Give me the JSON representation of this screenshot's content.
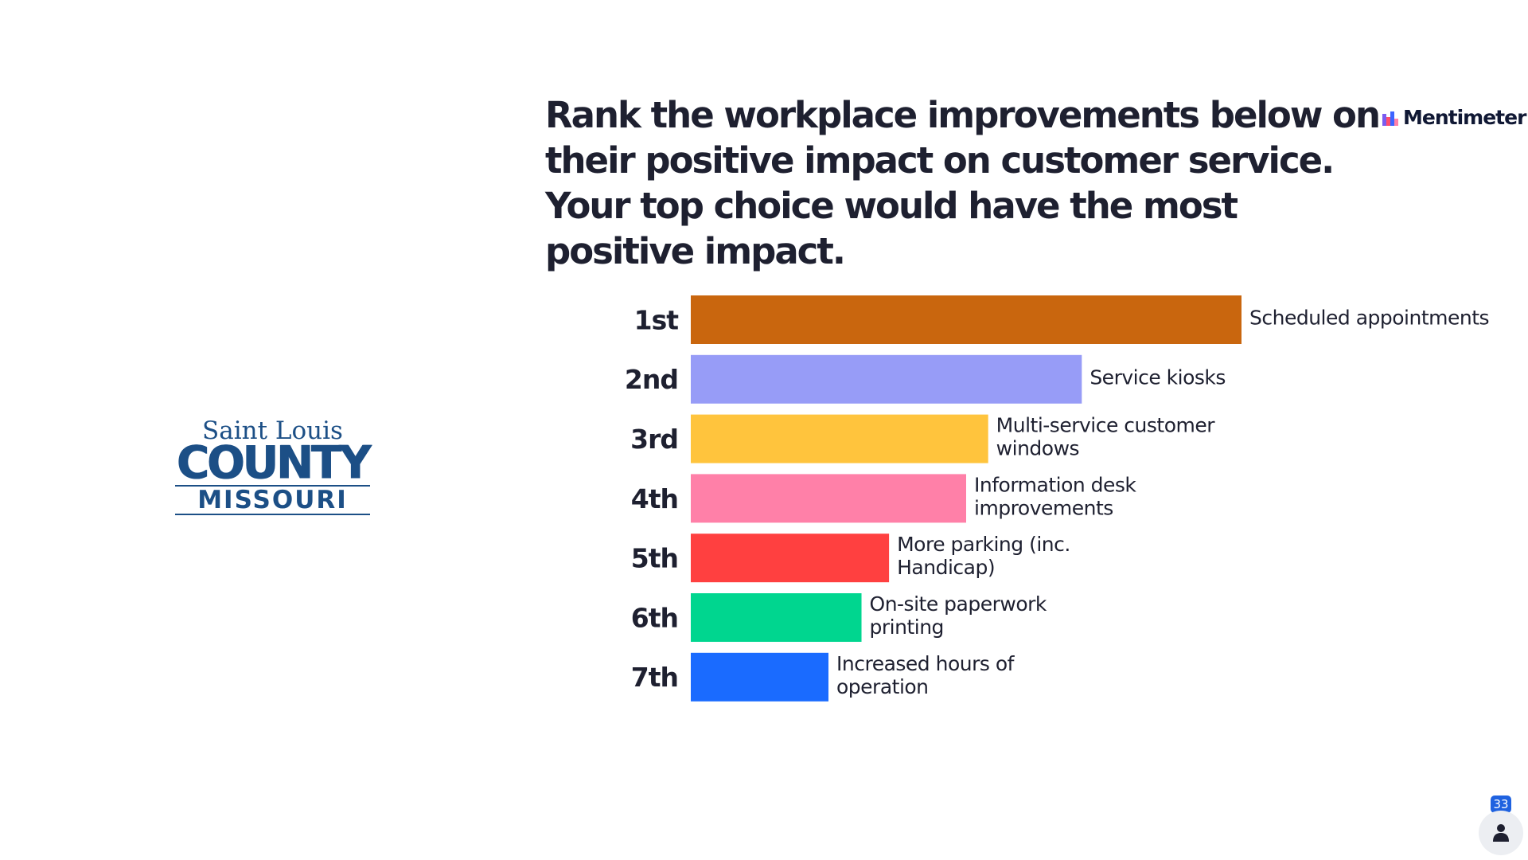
{
  "org_logo": {
    "line1": "Saint Louis",
    "line2": "COUNTY",
    "line3": "MISSOURI",
    "color": "#1c4f86"
  },
  "brand": {
    "name": "Mentimeter",
    "icon": "mentimeter-logo-icon"
  },
  "slide": {
    "question": "Rank the workplace improvements below on their positive impact on customer service. Your top choice would have the most positive impact."
  },
  "participants": {
    "count": "33",
    "icon": "person-icon",
    "badge_color": "#1f62e0"
  },
  "chart_data": {
    "type": "bar",
    "orientation": "horizontal",
    "categories": [
      "1st",
      "2nd",
      "3rd",
      "4th",
      "5th",
      "6th",
      "7th"
    ],
    "items": [
      {
        "rank": "1st",
        "label": "Scheduled appointments",
        "value": 1.0,
        "color": "#c9660e"
      },
      {
        "rank": "2nd",
        "label": "Service kiosks",
        "value": 0.71,
        "color": "#979cf7"
      },
      {
        "rank": "3rd",
        "label": "Multi-service customer windows",
        "value": 0.54,
        "color": "#ffc43d"
      },
      {
        "rank": "4th",
        "label": "Information desk improvements",
        "value": 0.5,
        "color": "#ff80a8"
      },
      {
        "rank": "5th",
        "label": "More parking (inc. Handicap)",
        "value": 0.36,
        "color": "#ff4040"
      },
      {
        "rank": "6th",
        "label": "On-site paperwork printing",
        "value": 0.31,
        "color": "#00d68f"
      },
      {
        "rank": "7th",
        "label": "Increased hours of operation",
        "value": 0.25,
        "color": "#1a6bff"
      }
    ],
    "title": "",
    "xlabel": "",
    "ylabel": "",
    "grid": false
  }
}
